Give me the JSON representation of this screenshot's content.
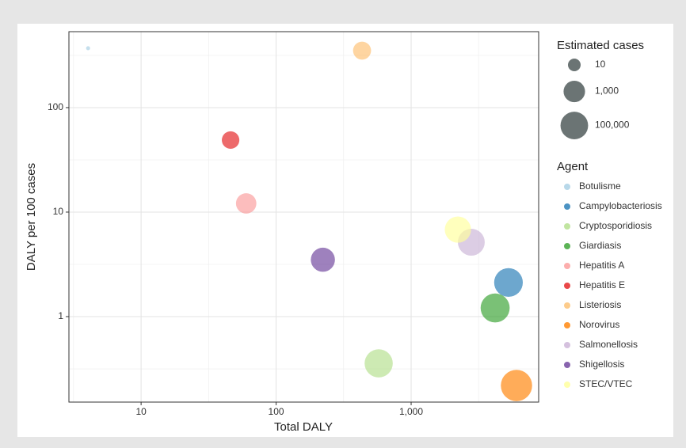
{
  "chart_data": {
    "type": "scatter",
    "x_label": "Total DALY",
    "y_label": "DALY per 100 cases",
    "log_x": true,
    "log_y": true,
    "grid": true,
    "xlim": [
      2.92,
      8800
    ],
    "ylim": [
      0.152,
      533
    ],
    "xticks": [
      10,
      100,
      {
        "value": 1000,
        "label": "1,000"
      }
    ],
    "yticks": [
      1,
      10,
      100
    ],
    "x_minor_ticks": [
      3.16,
      31.6,
      316,
      3162
    ],
    "y_minor_ticks": [
      0.316,
      3.16,
      31.6,
      316
    ],
    "size_legend": {
      "title": "Estimated cases",
      "color": "#6b7474",
      "values": [
        10,
        1000,
        100000
      ],
      "value_labels": [
        "10",
        "1,000",
        "100,000"
      ]
    },
    "legend_title": "Agent",
    "series": [
      {
        "name": "Botulisme",
        "color": "#a6cee3",
        "x": [
          4.05
        ],
        "values": [
          370
        ],
        "sizes": [
          1.1
        ]
      },
      {
        "name": "Campylobacteriosis",
        "color": "#1f78b4",
        "x": [
          5260
        ],
        "values": [
          2.12
        ],
        "sizes": [
          248000
        ]
      },
      {
        "name": "Cryptosporidiosis",
        "color": "#b2df8a",
        "x": [
          575
        ],
        "values": [
          0.357
        ],
        "sizes": [
          161000
        ]
      },
      {
        "name": "Giardiasis",
        "color": "#33a02c",
        "x": [
          4190
        ],
        "values": [
          1.21
        ],
        "sizes": [
          346000
        ]
      },
      {
        "name": "Hepatitis A",
        "color": "#fb9a99",
        "x": [
          60
        ],
        "values": [
          12.1
        ],
        "sizes": [
          496
        ]
      },
      {
        "name": "Hepatitis E",
        "color": "#e31a1c",
        "x": [
          46
        ],
        "values": [
          48.9
        ],
        "sizes": [
          94
        ]
      },
      {
        "name": "Listeriosis",
        "color": "#fdbf6f",
        "x": [
          433
        ],
        "values": [
          351
        ],
        "sizes": [
          123
        ]
      },
      {
        "name": "Norovirus",
        "color": "#ff7f00",
        "x": [
          6030
        ],
        "values": [
          0.219
        ],
        "sizes": [
          2750000
        ]
      },
      {
        "name": "Salmonellosis",
        "color": "#cab2d6",
        "x": [
          2790
        ],
        "values": [
          5.15
        ],
        "sizes": [
          54000
        ]
      },
      {
        "name": "Shigellosis",
        "color": "#6a3d9a",
        "x": [
          222
        ],
        "values": [
          3.5
        ],
        "sizes": [
          6340
        ]
      },
      {
        "name": "STEC/VTEC",
        "color": "#ffff99",
        "x": [
          2220
        ],
        "values": [
          6.8
        ],
        "sizes": [
          32600
        ]
      }
    ]
  }
}
